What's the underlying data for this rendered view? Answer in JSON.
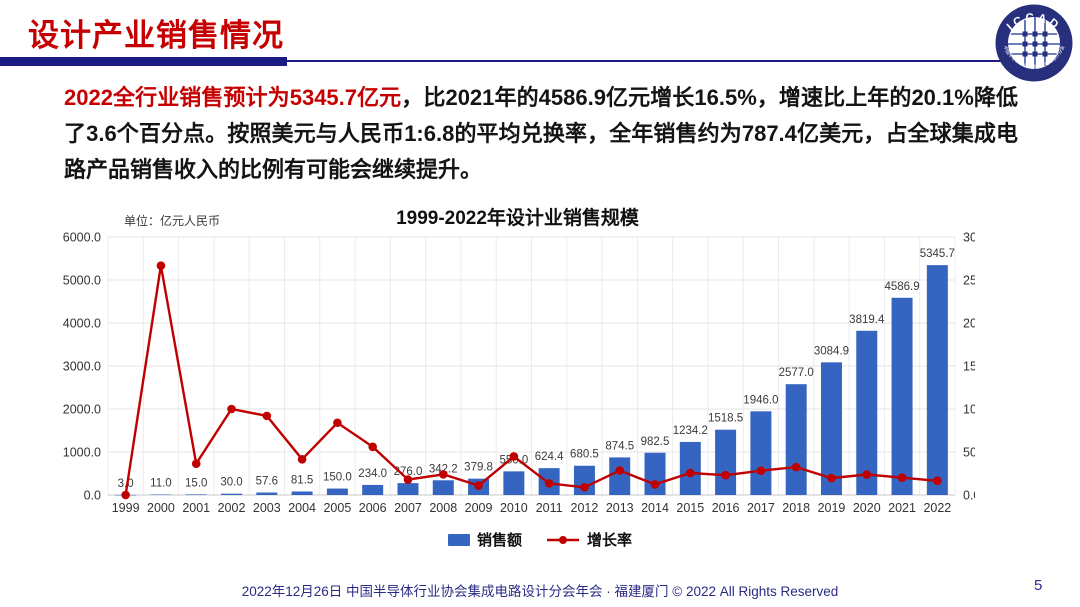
{
  "slide": {
    "title": "设计产业销售情况",
    "page_number": "5",
    "footer": "2022年12月26日 中国半导体行业协会集成电路设计分会年会 · 福建厦门 © 2022 All Rights Reserved",
    "logo": {
      "text": "ICCAD",
      "ring_text": "中国半导体行业协会集成电路设计分会"
    }
  },
  "paragraph": {
    "highlight": "2022全行业销售预计为5345.7亿元",
    "rest": "，比2021年的4586.9亿元增长16.5%，增速比上年的20.1%降低了3.6个百分点。按照美元与人民币1:6.8的平均兑换率，全年销售约为787.4亿美元，占全球集成电路产品销售收入的比例有可能会继续提升。"
  },
  "chart_data": {
    "type": "bar",
    "title": "1999-2022年设计业销售规模",
    "unit_label": "单位：亿元人民币",
    "categories": [
      1999,
      2000,
      2001,
      2002,
      2003,
      2004,
      2005,
      2006,
      2007,
      2008,
      2009,
      2010,
      2011,
      2012,
      2013,
      2014,
      2015,
      2016,
      2017,
      2018,
      2019,
      2020,
      2021,
      2022
    ],
    "series": [
      {
        "name": "销售额",
        "type": "bar",
        "axis": "left",
        "color": "#3565c1",
        "values": [
          3.0,
          11.0,
          15.0,
          30.0,
          57.6,
          81.5,
          150.0,
          234.0,
          276.0,
          342.2,
          379.8,
          550.0,
          624.4,
          680.5,
          874.5,
          982.5,
          1234.2,
          1518.5,
          1946.0,
          2577.0,
          3084.9,
          3819.4,
          4586.9,
          5345.7
        ]
      },
      {
        "name": "增长率",
        "type": "line",
        "axis": "right",
        "color": "#c00000",
        "values_pct": [
          0.0,
          266.7,
          36.4,
          100.0,
          92.0,
          41.5,
          84.0,
          56.0,
          17.9,
          24.0,
          11.0,
          44.8,
          13.5,
          9.0,
          28.5,
          12.3,
          25.6,
          23.0,
          28.2,
          32.4,
          19.7,
          23.8,
          20.1,
          16.5
        ]
      }
    ],
    "y_left": {
      "min": 0,
      "max": 6000,
      "step": 1000,
      "tick_labels": [
        "0.0",
        "1000.0",
        "2000.0",
        "3000.0",
        "4000.0",
        "5000.0",
        "6000.0"
      ]
    },
    "y_right": {
      "min": 0,
      "max": 300,
      "step": 50,
      "tick_labels": [
        "0.0%",
        "50.0%",
        "100.0%",
        "150.0%",
        "200.0%",
        "250.0%",
        "300.0%"
      ]
    },
    "grid": true,
    "legend_position": "bottom"
  }
}
